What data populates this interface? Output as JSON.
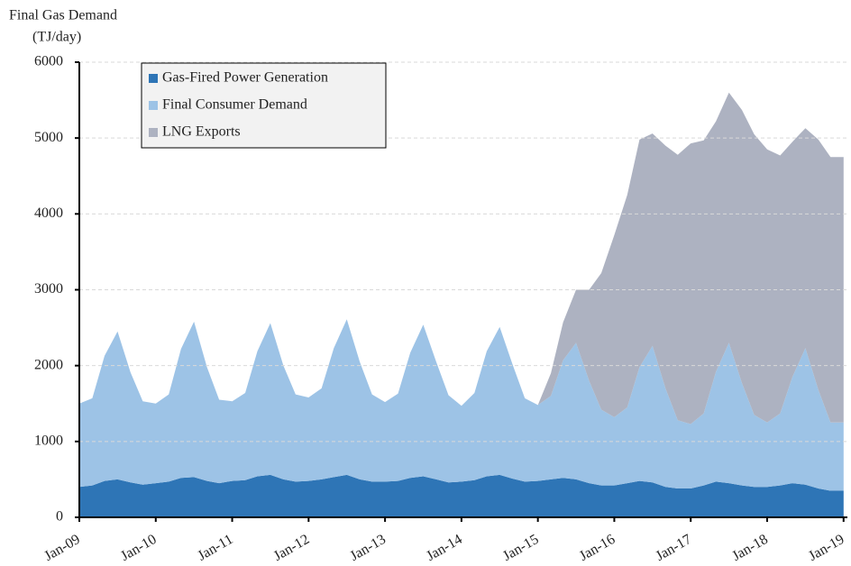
{
  "chart_data": {
    "type": "stacked-area",
    "y_label": [
      "Final Gas Demand",
      "(TJ/day)"
    ],
    "x": [
      2009,
      2009.17,
      2009.33,
      2009.5,
      2009.67,
      2009.83,
      2010,
      2010.17,
      2010.33,
      2010.5,
      2010.67,
      2010.83,
      2011,
      2011.17,
      2011.33,
      2011.5,
      2011.67,
      2011.83,
      2012,
      2012.17,
      2012.33,
      2012.5,
      2012.67,
      2012.83,
      2013,
      2013.17,
      2013.33,
      2013.5,
      2013.67,
      2013.83,
      2014,
      2014.17,
      2014.33,
      2014.5,
      2014.67,
      2014.83,
      2015,
      2015.17,
      2015.33,
      2015.5,
      2015.67,
      2015.83,
      2016,
      2016.17,
      2016.33,
      2016.5,
      2016.67,
      2016.83,
      2017,
      2017.17,
      2017.33,
      2017.5,
      2017.67,
      2017.83,
      2018,
      2018.17,
      2018.33,
      2018.5,
      2018.67,
      2018.83,
      2019
    ],
    "series": [
      {
        "name": "Gas-Fired Power Generation",
        "color": "#2e75b6",
        "values": [
          400,
          420,
          480,
          500,
          460,
          430,
          450,
          470,
          520,
          530,
          480,
          450,
          480,
          490,
          540,
          560,
          500,
          470,
          480,
          500,
          530,
          560,
          500,
          470,
          470,
          480,
          520,
          540,
          500,
          460,
          470,
          490,
          540,
          560,
          510,
          470,
          480,
          500,
          520,
          500,
          450,
          420,
          420,
          450,
          480,
          460,
          400,
          380,
          380,
          420,
          470,
          450,
          420,
          400,
          400,
          420,
          450,
          430,
          380,
          350,
          350
        ]
      },
      {
        "name": "Final Consumer Demand",
        "color": "#9dc3e6",
        "values": [
          1100,
          1150,
          1650,
          1950,
          1450,
          1100,
          1050,
          1150,
          1700,
          2050,
          1500,
          1100,
          1050,
          1150,
          1650,
          2000,
          1500,
          1150,
          1100,
          1200,
          1700,
          2050,
          1550,
          1150,
          1050,
          1150,
          1650,
          2000,
          1550,
          1150,
          1000,
          1150,
          1650,
          1950,
          1500,
          1100,
          1000,
          1100,
          1550,
          1800,
          1350,
          1000,
          900,
          1000,
          1500,
          1800,
          1300,
          900,
          850,
          950,
          1450,
          1850,
          1350,
          950,
          850,
          950,
          1400,
          1800,
          1300,
          900,
          900
        ]
      },
      {
        "name": "LNG Exports",
        "color": "#adb2c1",
        "values": [
          0,
          0,
          0,
          0,
          0,
          0,
          0,
          0,
          0,
          0,
          0,
          0,
          0,
          0,
          0,
          0,
          0,
          0,
          0,
          0,
          0,
          0,
          0,
          0,
          0,
          0,
          0,
          0,
          0,
          0,
          0,
          0,
          0,
          0,
          0,
          0,
          0,
          300,
          500,
          700,
          1200,
          1800,
          2400,
          2800,
          3000,
          2800,
          3200,
          3500,
          3700,
          3600,
          3300,
          3300,
          3600,
          3700,
          3600,
          3400,
          3100,
          2900,
          3300,
          3500,
          3500
        ]
      }
    ],
    "xlim": [
      2009,
      2019.05
    ],
    "xticks": [
      {
        "value": 2009,
        "label": "Jan-09"
      },
      {
        "value": 2010,
        "label": "Jan-10"
      },
      {
        "value": 2011,
        "label": "Jan-11"
      },
      {
        "value": 2012,
        "label": "Jan-12"
      },
      {
        "value": 2013,
        "label": "Jan-13"
      },
      {
        "value": 2014,
        "label": "Jan-14"
      },
      {
        "value": 2015,
        "label": "Jan-15"
      },
      {
        "value": 2016,
        "label": "Jan-16"
      },
      {
        "value": 2017,
        "label": "Jan-17"
      },
      {
        "value": 2018,
        "label": "Jan-18"
      },
      {
        "value": 2019,
        "label": "Jan-19"
      }
    ],
    "ylim": [
      0,
      6000
    ],
    "yticks": [
      0,
      1000,
      2000,
      3000,
      4000,
      5000,
      6000
    ],
    "grid": true,
    "legend": "upper left"
  }
}
